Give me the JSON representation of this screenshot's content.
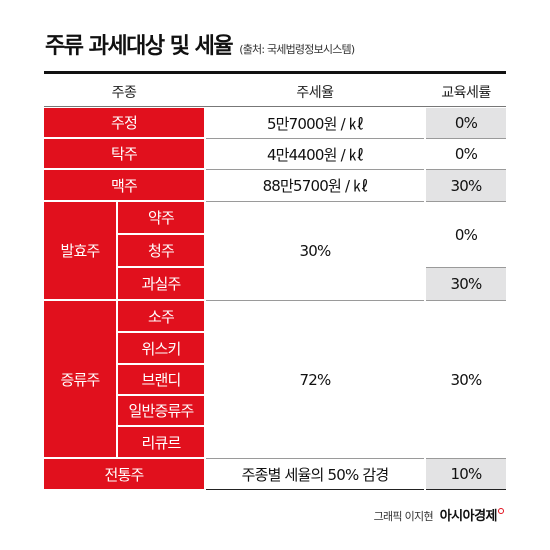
{
  "header": {
    "title": "주류 과세대상 및 세율",
    "source": "(출처: 국세법령정보시스템)"
  },
  "columns": [
    "주종",
    "주세율",
    "교육세률"
  ],
  "rows": {
    "jujeong": {
      "label": "주정",
      "tax": "5만7000원 / ㎘",
      "edu": "0%"
    },
    "takju": {
      "label": "탁주",
      "tax": "4만4400원 / ㎘",
      "edu": "0%"
    },
    "maekju": {
      "label": "맥주",
      "tax": "88만5700원 / ㎘",
      "edu": "30%"
    }
  },
  "fermented": {
    "label": "발효주",
    "items": [
      "약주",
      "청주",
      "과실주"
    ],
    "tax": "30%",
    "edu_top": "0%",
    "edu_bottom": "30%"
  },
  "distilled": {
    "label": "증류주",
    "items": [
      "소주",
      "위스키",
      "브랜디",
      "일반증류주",
      "리큐르"
    ],
    "tax": "72%",
    "edu": "30%"
  },
  "traditional": {
    "label": "전통주",
    "tax": "주종별 세율의 50% 감경",
    "edu": "10%"
  },
  "footer": {
    "credit": "그래픽 이지현",
    "brand": "아시아경제"
  },
  "colors": {
    "accent": "#e1101d",
    "grey_cell": "#e3e3e4"
  }
}
